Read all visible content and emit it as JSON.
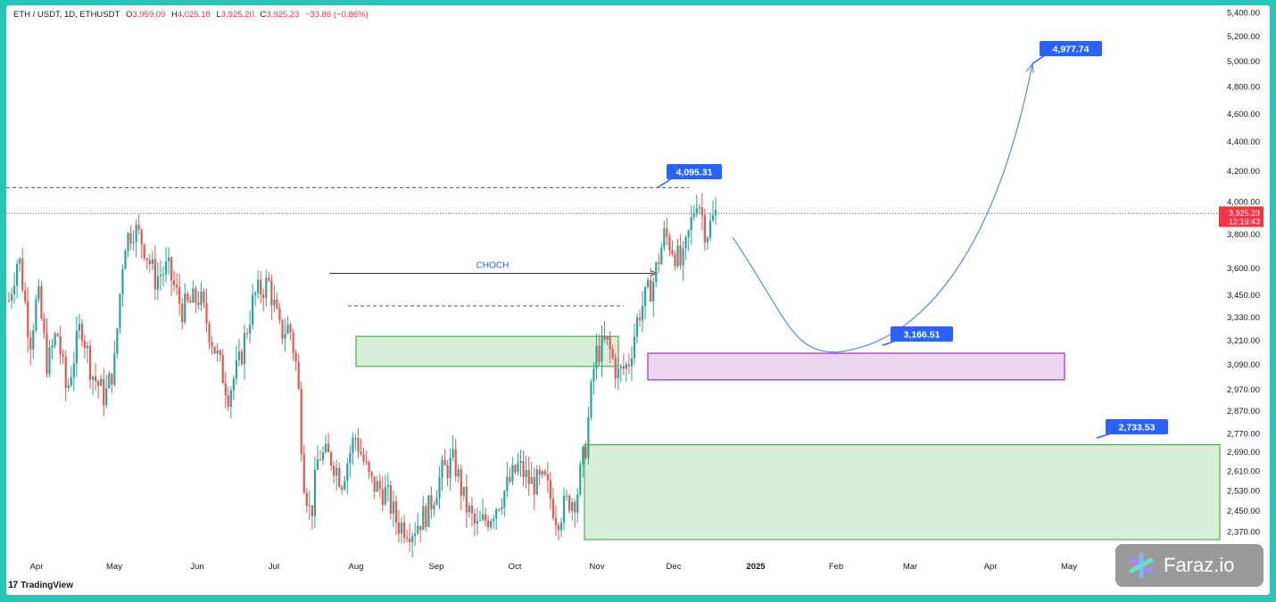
{
  "header": {
    "symbol": "ETH / USDT, 1D, ETHUSDT",
    "open_label": "O",
    "open": "3,959.09",
    "high_label": "H",
    "high": "4,025.18",
    "low_label": "L",
    "low": "3,925.20",
    "close_label": "C",
    "close": "3,925.23",
    "change": "−33.86 (−0.86%)"
  },
  "branding": {
    "tradingview": "TradingView",
    "watermark": "Faraz.io"
  },
  "chart_data": {
    "type": "candlestick",
    "price_axis_labels": [
      "5,400.00",
      "5,200.00",
      "5,000.00",
      "4,800.00",
      "4,600.00",
      "4,400.00",
      "4,200.00",
      "4,000.00",
      "3,800.00",
      "3,600.00",
      "3,450.00",
      "3,330.00",
      "3,210.00",
      "3,090.00",
      "2,970.00",
      "2,870.00",
      "2,770.00",
      "2,690.00",
      "2,610.00",
      "2,530.00",
      "2,450.00",
      "2,370.00"
    ],
    "time_axis_labels": [
      "Apr",
      "May",
      "Jun",
      "Jul",
      "Aug",
      "Sep",
      "Oct",
      "Nov",
      "Dec",
      "2025",
      "Feb",
      "Mar",
      "Apr",
      "May"
    ],
    "current_price": {
      "value": "3,925.23",
      "countdown": "12:19:43",
      "color": "#f23645"
    },
    "annotations": [
      {
        "text": "4,095.31",
        "value": 4095.31,
        "type": "price-label"
      },
      {
        "text": "4,977.74",
        "value": 4977.74,
        "type": "price-label"
      },
      {
        "text": "3,166.51",
        "value": 3166.51,
        "type": "price-label"
      },
      {
        "text": "2,733.53",
        "value": 2733.53,
        "type": "price-label"
      },
      {
        "text": "CHOCH",
        "value": 3560,
        "type": "text"
      }
    ],
    "zones": [
      {
        "name": "demand-zone-aug",
        "low": 3080,
        "high": 3230,
        "color": "#d7eed7",
        "border": "#4caf50"
      },
      {
        "name": "demand-zone-nov",
        "low": 3015,
        "high": 3145,
        "color": "#ecd5ee",
        "border": "#ab2fbf"
      },
      {
        "name": "demand-zone-low",
        "low": 2340,
        "high": 2720,
        "color": "#d7eed7",
        "border": "#4caf50"
      }
    ],
    "levels": [
      {
        "name": "high-level-line",
        "value": 4090
      },
      {
        "name": "choch-level-line",
        "value": 3390
      }
    ],
    "projection": {
      "start": 3780,
      "bottom": 3150,
      "end": 4977.74
    },
    "colors": {
      "up": "#26a69a",
      "down": "#ef5350",
      "label_bg": "#2962ff",
      "projection": "#5b8bd6"
    }
  }
}
